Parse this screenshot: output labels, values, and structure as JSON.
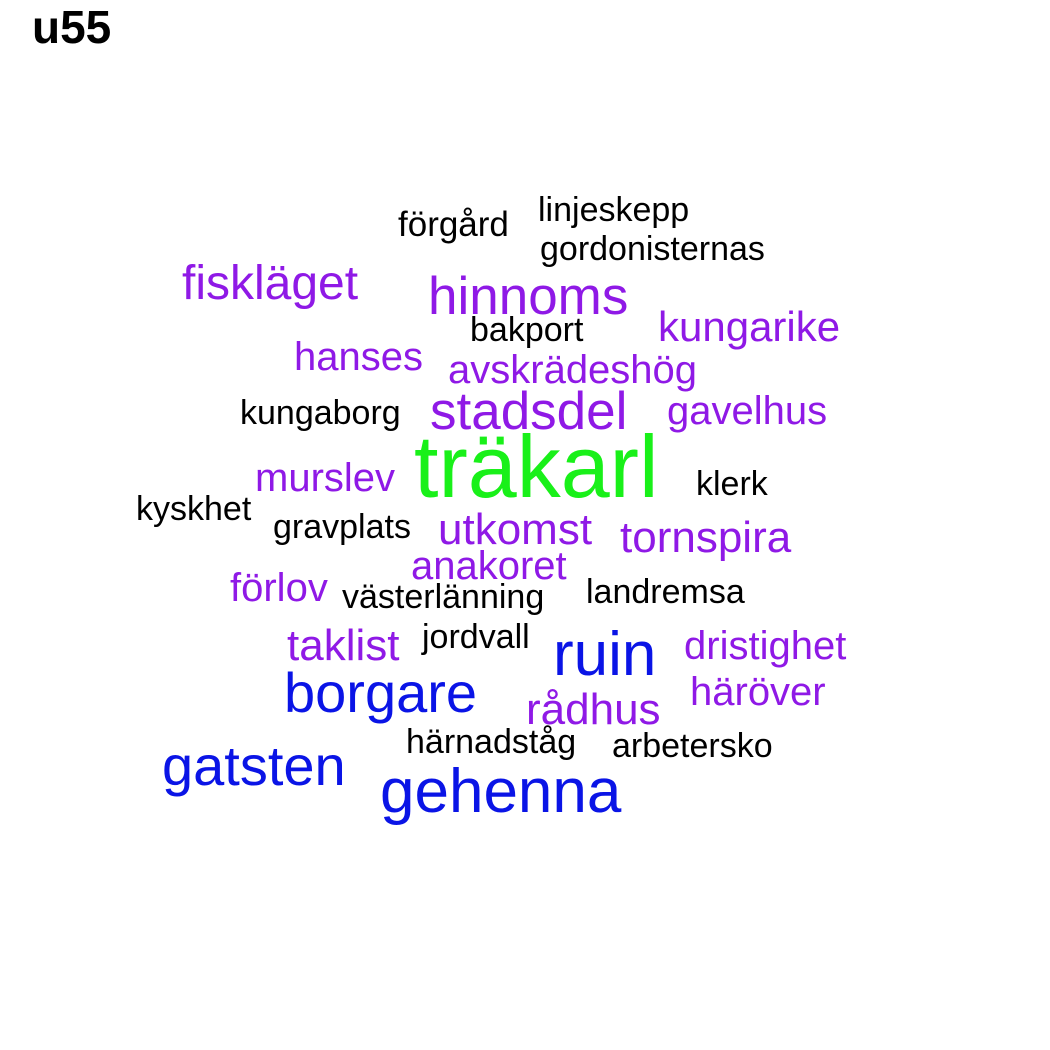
{
  "title": "u55",
  "colors": {
    "black": "#000000",
    "purple": "#8f19e6",
    "blue": "#0a14e6",
    "green": "#19f019"
  },
  "words": [
    {
      "text": "förgård",
      "color": "black"
    },
    {
      "text": "linjeskepp",
      "color": "black"
    },
    {
      "text": "gordonisternas",
      "color": "black"
    },
    {
      "text": "fiskläget",
      "color": "purple"
    },
    {
      "text": "hinnoms",
      "color": "purple"
    },
    {
      "text": "bakport",
      "color": "black"
    },
    {
      "text": "kungarike",
      "color": "purple"
    },
    {
      "text": "hanses",
      "color": "purple"
    },
    {
      "text": "avskrädeshög",
      "color": "purple"
    },
    {
      "text": "kungaborg",
      "color": "black"
    },
    {
      "text": "stadsdel",
      "color": "purple"
    },
    {
      "text": "gavelhus",
      "color": "purple"
    },
    {
      "text": "träkarl",
      "color": "green"
    },
    {
      "text": "murslev",
      "color": "purple"
    },
    {
      "text": "klerk",
      "color": "black"
    },
    {
      "text": "kyskhet",
      "color": "black"
    },
    {
      "text": "gravplats",
      "color": "black"
    },
    {
      "text": "utkomst",
      "color": "purple"
    },
    {
      "text": "tornspira",
      "color": "purple"
    },
    {
      "text": "anakoret",
      "color": "purple"
    },
    {
      "text": "förlov",
      "color": "purple"
    },
    {
      "text": "västerlänning",
      "color": "black"
    },
    {
      "text": "landremsa",
      "color": "black"
    },
    {
      "text": "taklist",
      "color": "purple"
    },
    {
      "text": "jordvall",
      "color": "black"
    },
    {
      "text": "ruin",
      "color": "blue"
    },
    {
      "text": "dristighet",
      "color": "purple"
    },
    {
      "text": "borgare",
      "color": "blue"
    },
    {
      "text": "häröver",
      "color": "purple"
    },
    {
      "text": "rådhus",
      "color": "purple"
    },
    {
      "text": "härnadståg",
      "color": "black"
    },
    {
      "text": "arbetersko",
      "color": "black"
    },
    {
      "text": "gatsten",
      "color": "blue"
    },
    {
      "text": "gehenna",
      "color": "blue"
    }
  ]
}
